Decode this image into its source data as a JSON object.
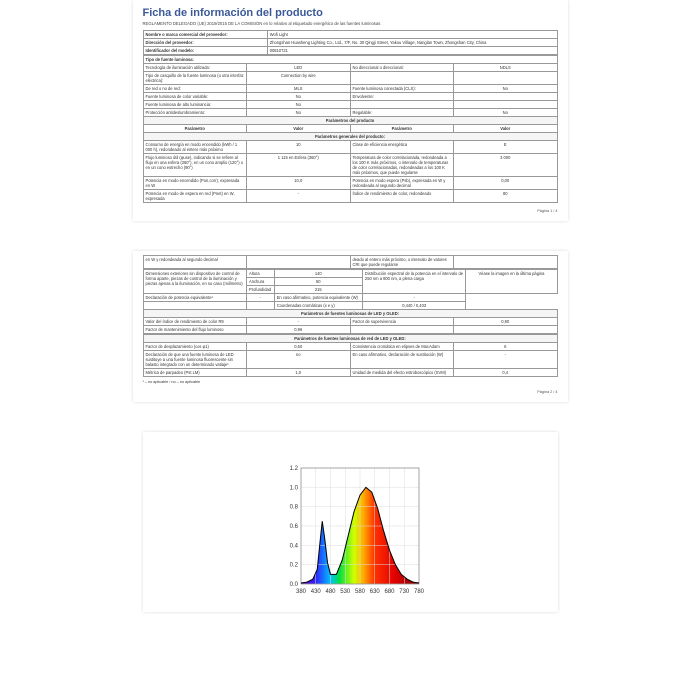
{
  "title": "Ficha de información del producto",
  "subtitle": "REGLAMENTO DELEGADO (UE) 2019/2015 DE LA COMISIÓN en lo relativo al etiquetado energético de las fuentes luminosas",
  "header_rows": [
    [
      "Nombre o marca comercial del proveedor:",
      "Wofi Light"
    ],
    [
      "Dirección del proveedor:",
      "Zhongshan Huasheng Lighting Co., Ltd., 7/F, No. 30 Qingji Street, Yakou Village, Nanglan Town, Zhongshan City, China"
    ],
    [
      "Identificador del modelo:",
      "00810721"
    ]
  ],
  "tipo_head": "Tipo de fuente luminosa:",
  "tipo": [
    [
      "Tecnología de iluminación utilizada:",
      "LED",
      "No direccional o direccional:",
      "NDLS"
    ],
    [
      "Tipo de casquillo de la fuente luminosa (u otra interfaz eléctrica):",
      "Connection by wire",
      "",
      ""
    ],
    [
      "De red o no de red:",
      "MLS",
      "Fuente luminosa conectada (CLS):",
      "No"
    ],
    [
      "Fuente luminosa de color variable:",
      "No",
      "Envolvente:",
      ""
    ],
    [
      "Fuente luminosa de alto luminancia:",
      "No",
      "",
      ""
    ],
    [
      "Protección antideslumbramiento:",
      "No",
      "Regulable:",
      "No"
    ]
  ],
  "param_head": [
    "Parámetro",
    "Valor",
    "Parámetro",
    "Valor"
  ],
  "gen_head": "Parámetros generales del producto:",
  "gen": [
    [
      "Consumo de energía en modo encendido (kWh / 1 000 h), redondeado al entero más próximo",
      "10",
      "Clase de eficiencia energética",
      "E"
    ],
    [
      "Flujo luminoso útil (φuse), indicando si se refiere al flujo en una esfera (360°), en un cono amplio (120°) o en un cono estrecho (90°)",
      "1 115 en Esfera (360°)",
      "Temperatura de color correlacionada, redondeada a los 100 K más próximos, o intervalo de temperaturas de color correlacionadas, redondeadas a los 100 K más próximos, que puede regularse",
      "3 000"
    ],
    [
      "Potencia en modo encendido (Pon,corr), expresada en W",
      "10,0",
      "Potencia en modo espera (Psb), expresada en W y redondeada al segundo decimal",
      "0,00"
    ],
    [
      "Potencia en modo de espera en red (Pnet) en W, expresada",
      "-",
      "Índice de rendimiento de color, redondeado",
      "80"
    ]
  ],
  "pageno1": "Página 1 / 4",
  "page2_top": [
    [
      "en W y redondeada al segundo decimal",
      "",
      "deado al entero más próximo, o intervalo de valores CRI que puede regularse",
      ""
    ]
  ],
  "dims_label": "Dimensiones exteriores sin dispositivo de control de forma aparte, piezas de control de la iluminación y piezas ajenas a la iluminación, en su caso (milímetro)",
  "dims": [
    [
      "Altura",
      "140"
    ],
    [
      "Anchura",
      "50"
    ],
    [
      "Profundidad",
      "215"
    ]
  ],
  "dims_right": [
    "Distribución espectral de la potencia en el intervalo de 250 nm a 800 nm, a plena carga",
    "Véase la imagen en la última página"
  ],
  "equiv": [
    "Declaración de potencia equivalente¹",
    "-",
    "En caso afirmativo, potencia equivalente (W)",
    "-"
  ],
  "crom": [
    "",
    "",
    "Coordenadas cromáticas (x e y)",
    "0,440 / 0,403"
  ],
  "led_head": "Parámetros de fuentes luminosas de LED y OLED:",
  "led": [
    [
      "Valor del índice de rendimiento de color R9",
      "-",
      "Factor de supervivencia",
      "0,90"
    ],
    [
      "Factor de mantenimiento del flujo luminoso",
      "0,96",
      "",
      ""
    ]
  ],
  "redled_head": "Parámetros de fuentes luminosas de red de LED y OLED:",
  "redled": [
    [
      "Factor de desplazamiento (cos φ1)",
      "0,50",
      "Consistencia cromática en elipses de MacAdam",
      "6"
    ],
    [
      "Declaración de que una fuente luminosa de LED sustituye a una fuente luminosa fluorescente sin balasto integrado con un determinado vatiaje¹",
      "no",
      "En caso afirmativo, declaración de sustitución (W)",
      "-"
    ],
    [
      "Métrica de parpadeo (Pst LM)",
      "1,0",
      "Unidad de medida del efecto estroboscópico (SVM)",
      "0,4"
    ]
  ],
  "foot1": "¹ – no aplicable / no – no aplicable",
  "pageno2": "Página 2 / 4",
  "chart": {
    "xmin": 380,
    "xmax": 780,
    "xtick": 50,
    "ymin": 0,
    "ymax": 1.2,
    "ytick": 0.2,
    "grid_color": "#dcdcdc",
    "line_color": "#000000",
    "curve": [
      [
        380,
        0.01
      ],
      [
        400,
        0.02
      ],
      [
        420,
        0.05
      ],
      [
        435,
        0.15
      ],
      [
        445,
        0.45
      ],
      [
        452,
        0.65
      ],
      [
        460,
        0.48
      ],
      [
        470,
        0.22
      ],
      [
        480,
        0.1
      ],
      [
        500,
        0.1
      ],
      [
        520,
        0.25
      ],
      [
        540,
        0.5
      ],
      [
        560,
        0.75
      ],
      [
        580,
        0.92
      ],
      [
        600,
        1.0
      ],
      [
        620,
        0.95
      ],
      [
        640,
        0.78
      ],
      [
        660,
        0.55
      ],
      [
        680,
        0.35
      ],
      [
        700,
        0.2
      ],
      [
        720,
        0.1
      ],
      [
        740,
        0.05
      ],
      [
        760,
        0.02
      ],
      [
        780,
        0.01
      ]
    ],
    "spectrum_stops": [
      [
        380,
        "#6b00b0"
      ],
      [
        430,
        "#3020ff"
      ],
      [
        480,
        "#00c0ff"
      ],
      [
        510,
        "#00e040"
      ],
      [
        560,
        "#d0ff00"
      ],
      [
        590,
        "#ffb000"
      ],
      [
        630,
        "#ff3000"
      ],
      [
        700,
        "#e00000"
      ],
      [
        780,
        "#800000"
      ]
    ]
  }
}
